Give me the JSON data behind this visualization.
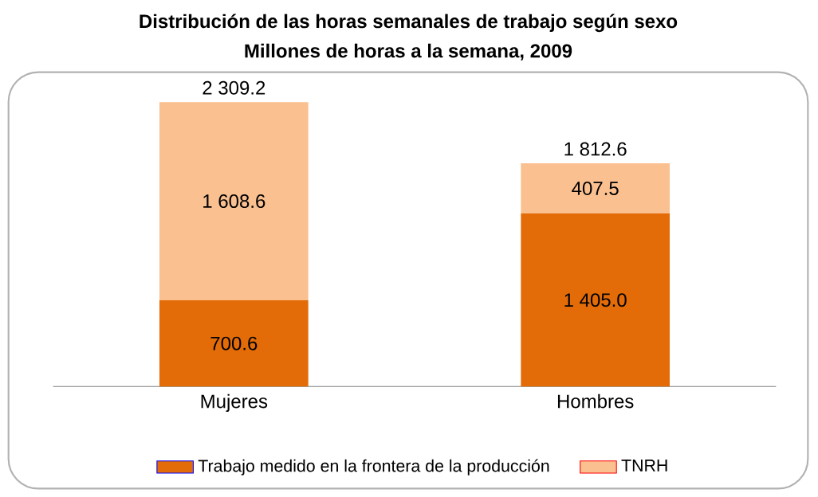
{
  "chart_data": {
    "type": "bar",
    "stacked": true,
    "title": "Distribución de las horas semanales de trabajo según sexo",
    "subtitle": "Millones de horas a la semana, 2009",
    "categories": [
      "Mujeres",
      "Hombres"
    ],
    "series": [
      {
        "name": "Trabajo medido en la frontera de la producción",
        "color": "#e36c09",
        "values": [
          700.6,
          1405.0
        ],
        "value_labels": [
          "700.6",
          "1 405.0"
        ]
      },
      {
        "name": "TNRH",
        "color": "#fac090",
        "values": [
          1608.6,
          407.5
        ],
        "value_labels": [
          "1 608.6",
          "407.5"
        ]
      }
    ],
    "totals": [
      "2 309.2",
      "1 812.6"
    ],
    "legend": "bottom"
  }
}
